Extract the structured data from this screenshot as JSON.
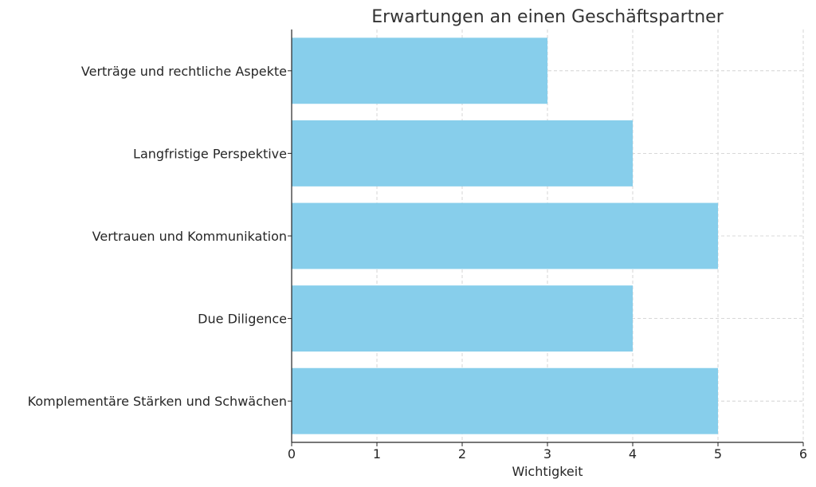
{
  "chart_data": {
    "type": "bar",
    "orientation": "horizontal",
    "title": "Erwartungen an einen Geschäftspartner",
    "xlabel": "Wichtigkeit",
    "ylabel": "",
    "categories": [
      "Komplementäre Stärken und Schwächen",
      "Due Diligence",
      "Vertrauen und Kommunikation",
      "Langfristige Perspektive",
      "Verträge und rechtliche Aspekte"
    ],
    "values": [
      5,
      4,
      5,
      4,
      3
    ],
    "xlim": [
      0,
      6
    ],
    "xticks": [
      0,
      1,
      2,
      3,
      4,
      5,
      6
    ],
    "grid": true,
    "bar_color": "#87CEEB"
  }
}
